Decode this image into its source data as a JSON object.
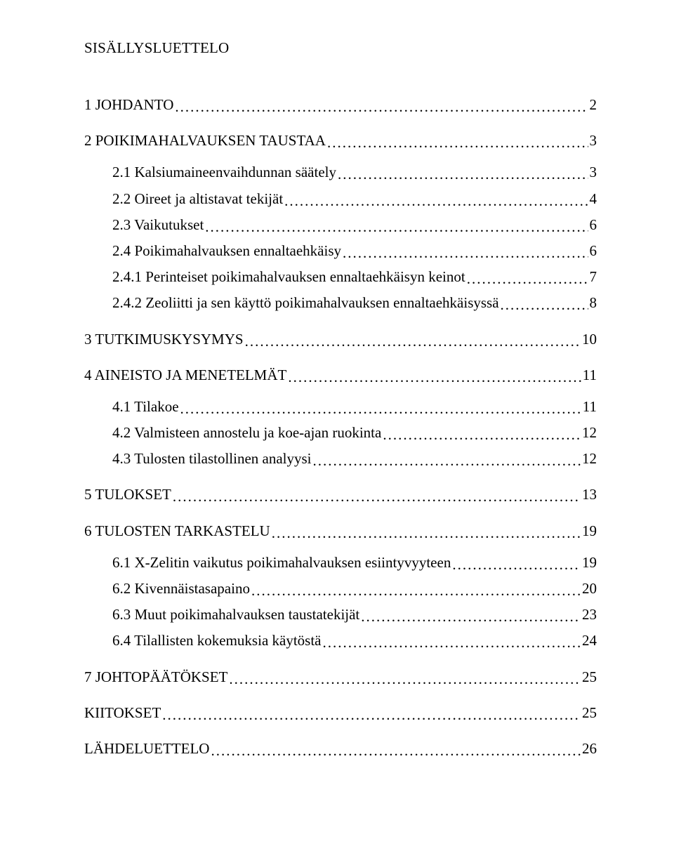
{
  "title": "SISÄLLYSLUETTELO",
  "entries": [
    {
      "level": 1,
      "label": "1 JOHDANTO",
      "page": "2"
    },
    {
      "level": 1,
      "label": "2 POIKIMAHALVAUKSEN TAUSTAA",
      "page": "3"
    },
    {
      "level": 2,
      "label": "2.1 Kalsiumaineenvaihdunnan säätely",
      "page": "3"
    },
    {
      "level": 2,
      "label": "2.2 Oireet ja altistavat tekijät",
      "page": "4"
    },
    {
      "level": 2,
      "label": "2.3 Vaikutukset",
      "page": "6"
    },
    {
      "level": 2,
      "label": "2.4 Poikimahalvauksen ennaltaehkäisy",
      "page": "6"
    },
    {
      "level": 2,
      "label": "2.4.1 Perinteiset poikimahalvauksen ennaltaehkäisyn keinot",
      "page": "7"
    },
    {
      "level": 2,
      "label": "2.4.2 Zeoliitti ja sen käyttö poikimahalvauksen ennaltaehkäisyssä",
      "page": "8"
    },
    {
      "level": 1,
      "label": "3 TUTKIMUSKYSYMYS",
      "page": "10"
    },
    {
      "level": 1,
      "label": "4 AINEISTO JA MENETELMÄT",
      "page": "11"
    },
    {
      "level": 2,
      "label": "4.1 Tilakoe",
      "page": "11"
    },
    {
      "level": 2,
      "label": "4.2 Valmisteen annostelu ja koe-ajan ruokinta",
      "page": "12"
    },
    {
      "level": 2,
      "label": "4.3 Tulosten tilastollinen analyysi",
      "page": "12"
    },
    {
      "level": 1,
      "label": "5 TULOKSET",
      "page": "13"
    },
    {
      "level": 1,
      "label": "6 TULOSTEN TARKASTELU",
      "page": "19"
    },
    {
      "level": 2,
      "label": "6.1 X-Zelitin vaikutus poikimahalvauksen esiintyvyyteen",
      "page": "19"
    },
    {
      "level": 2,
      "label": "6.2 Kivennäistasapaino",
      "page": "20"
    },
    {
      "level": 2,
      "label": "6.3 Muut poikimahalvauksen taustatekijät",
      "page": "23"
    },
    {
      "level": 2,
      "label": "6.4 Tilallisten kokemuksia käytöstä",
      "page": "24"
    },
    {
      "level": 1,
      "label": "7 JOHTOPÄÄTÖKSET",
      "page": "25"
    },
    {
      "level": 1,
      "label": "KIITOKSET",
      "page": "25"
    },
    {
      "level": 1,
      "label": "LÄHDELUETTELO",
      "page": "26"
    }
  ]
}
